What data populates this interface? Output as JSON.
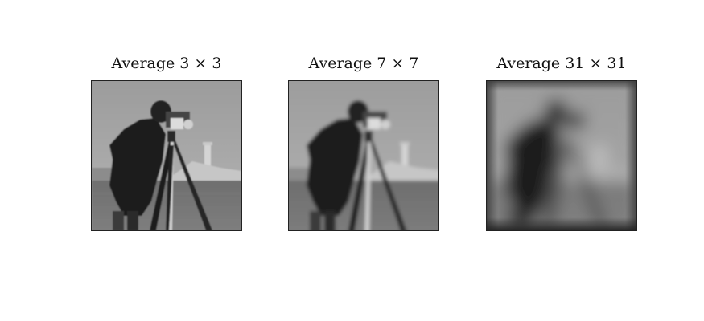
{
  "panels": [
    {
      "title": "Average 3 × 3",
      "blur": 0.9
    },
    {
      "title": "Average 7 × 7",
      "blur": 2.2
    },
    {
      "title": "Average 31 × 31",
      "blur": 9.5
    }
  ]
}
